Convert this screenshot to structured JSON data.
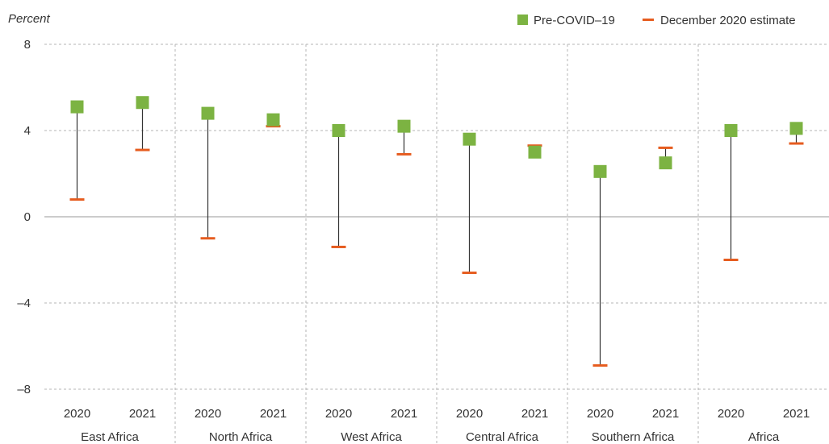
{
  "chart_data": {
    "type": "dot-range",
    "ylabel": "Percent",
    "ylim": [
      -8,
      8
    ],
    "yticks": [
      8,
      4,
      0,
      -4,
      -8
    ],
    "ytick_labels": [
      "8",
      "4",
      "0",
      "–4",
      "–8"
    ],
    "groups": [
      "East Africa",
      "North Africa",
      "West Africa",
      "Central Africa",
      "Southern Africa",
      "Africa"
    ],
    "years": [
      "2020",
      "2021"
    ],
    "legend": {
      "placement": "top-right",
      "items": [
        {
          "name": "Pre-COVID–19",
          "marker": "square",
          "color": "#7cb342"
        },
        {
          "name": "December 2020 estimate",
          "marker": "dash",
          "color": "#e65c1f"
        }
      ]
    },
    "series": [
      {
        "name": "Pre-COVID–19",
        "values": [
          5.1,
          5.3,
          4.8,
          4.5,
          4.0,
          4.2,
          3.6,
          3.0,
          2.1,
          2.5,
          4.0,
          4.1
        ]
      },
      {
        "name": "December 2020 estimate",
        "values": [
          0.8,
          3.1,
          -1.0,
          4.2,
          -1.4,
          2.9,
          -2.6,
          3.3,
          -6.9,
          3.2,
          -2.0,
          3.4
        ]
      }
    ],
    "grid": true,
    "colors": {
      "pre": "#7cb342",
      "dec": "#e65c1f",
      "stem": "#333333",
      "grid": "#b5b5b5",
      "zero": "#9a9a9a"
    }
  }
}
